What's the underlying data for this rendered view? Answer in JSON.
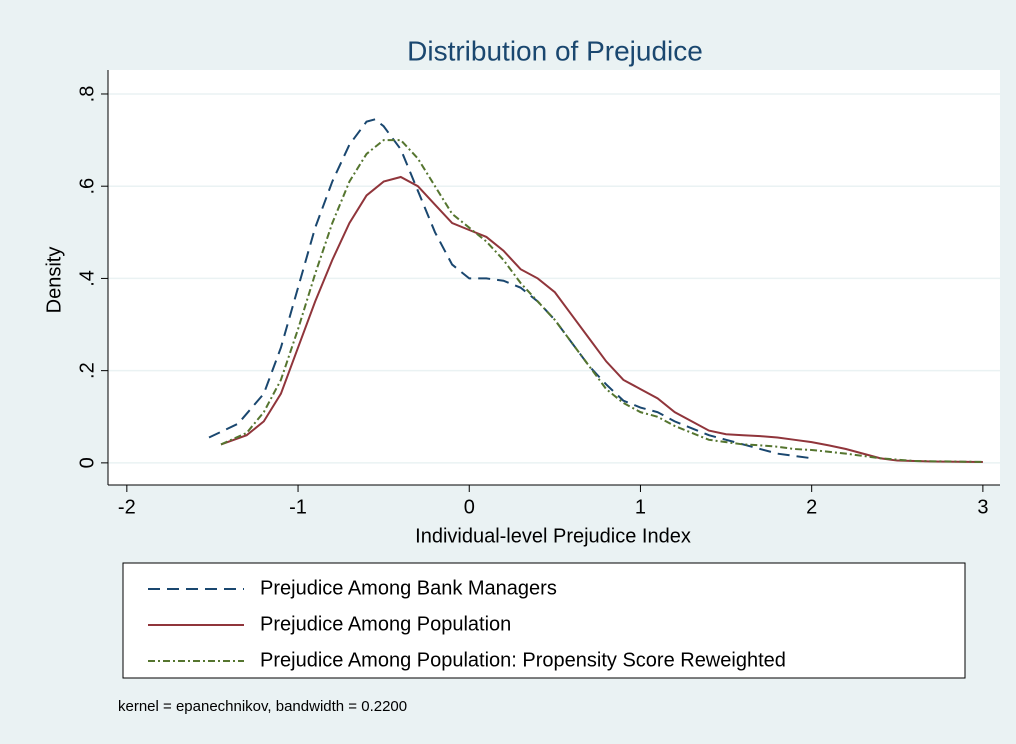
{
  "chart_data": {
    "type": "line",
    "title": "Distribution of Prejudice",
    "x_label": "Individual-level Prejudice Index",
    "y_label": "Density",
    "note": "kernel = epanechnikov, bandwidth = 0.2200",
    "xlim": [
      -2.11,
      3.1
    ],
    "ylim": [
      -0.048,
      0.852
    ],
    "xticks": [
      -2,
      -1,
      0,
      1,
      2,
      3
    ],
    "yticks": [
      0,
      {
        "value": 0.2,
        "label": ".2"
      },
      {
        "value": 0.4,
        "label": ".4"
      },
      {
        "value": 0.6,
        "label": ".6"
      },
      {
        "value": 0.8,
        "label": ".8"
      }
    ],
    "grid": true,
    "series": [
      {
        "name": "Prejudice Among Bank Managers",
        "color": "#1a476f",
        "dash": "12 7",
        "x": [
          -1.52,
          -1.35,
          -1.2,
          -1.1,
          -1.0,
          -0.9,
          -0.8,
          -0.7,
          -0.6,
          -0.55,
          -0.5,
          -0.4,
          -0.3,
          -0.2,
          -0.1,
          0,
          0.1,
          0.2,
          0.3,
          0.4,
          0.5,
          0.6,
          0.7,
          0.8,
          0.9,
          1.0,
          1.1,
          1.2,
          1.3,
          1.4,
          1.5,
          1.6,
          1.7,
          1.8,
          1.9,
          2.0
        ],
        "values": [
          0.055,
          0.085,
          0.15,
          0.25,
          0.38,
          0.51,
          0.61,
          0.69,
          0.74,
          0.745,
          0.73,
          0.68,
          0.59,
          0.5,
          0.43,
          0.4,
          0.4,
          0.395,
          0.38,
          0.35,
          0.31,
          0.26,
          0.21,
          0.17,
          0.135,
          0.12,
          0.11,
          0.09,
          0.075,
          0.06,
          0.05,
          0.04,
          0.03,
          0.02,
          0.015,
          0.01
        ]
      },
      {
        "name": "Prejudice Among Population",
        "color": "#90353b",
        "dash": "none",
        "x": [
          -1.45,
          -1.3,
          -1.2,
          -1.1,
          -1.0,
          -0.9,
          -0.8,
          -0.7,
          -0.6,
          -0.5,
          -0.4,
          -0.3,
          -0.2,
          -0.1,
          0,
          0.1,
          0.2,
          0.3,
          0.4,
          0.5,
          0.6,
          0.7,
          0.8,
          0.9,
          1.0,
          1.1,
          1.2,
          1.3,
          1.4,
          1.5,
          1.6,
          1.7,
          1.8,
          1.9,
          2.0,
          2.1,
          2.2,
          2.3,
          2.4,
          2.5,
          2.7,
          3.0
        ],
        "values": [
          0.04,
          0.06,
          0.09,
          0.15,
          0.25,
          0.35,
          0.44,
          0.52,
          0.58,
          0.61,
          0.62,
          0.6,
          0.56,
          0.52,
          0.505,
          0.49,
          0.46,
          0.42,
          0.4,
          0.37,
          0.32,
          0.27,
          0.22,
          0.18,
          0.16,
          0.14,
          0.11,
          0.09,
          0.07,
          0.062,
          0.06,
          0.058,
          0.055,
          0.05,
          0.045,
          0.038,
          0.03,
          0.02,
          0.01,
          0.005,
          0.003,
          0.002
        ]
      },
      {
        "name": "Prejudice Among Population: Propensity Score Reweighted",
        "color": "#55752f",
        "dash": "7 3 2 3",
        "x": [
          -1.45,
          -1.3,
          -1.2,
          -1.1,
          -1.0,
          -0.9,
          -0.8,
          -0.7,
          -0.6,
          -0.5,
          -0.4,
          -0.3,
          -0.2,
          -0.1,
          0,
          0.1,
          0.2,
          0.3,
          0.4,
          0.5,
          0.6,
          0.7,
          0.8,
          0.9,
          1.0,
          1.1,
          1.2,
          1.3,
          1.4,
          1.5,
          1.6,
          1.7,
          1.8,
          1.9,
          2.0,
          2.2,
          2.4,
          2.6,
          3.0
        ],
        "values": [
          0.04,
          0.065,
          0.11,
          0.18,
          0.29,
          0.41,
          0.52,
          0.61,
          0.67,
          0.7,
          0.7,
          0.66,
          0.6,
          0.54,
          0.51,
          0.48,
          0.44,
          0.39,
          0.35,
          0.31,
          0.26,
          0.21,
          0.16,
          0.13,
          0.11,
          0.1,
          0.08,
          0.065,
          0.05,
          0.045,
          0.04,
          0.038,
          0.035,
          0.03,
          0.028,
          0.02,
          0.01,
          0.004,
          0.002
        ]
      }
    ]
  }
}
